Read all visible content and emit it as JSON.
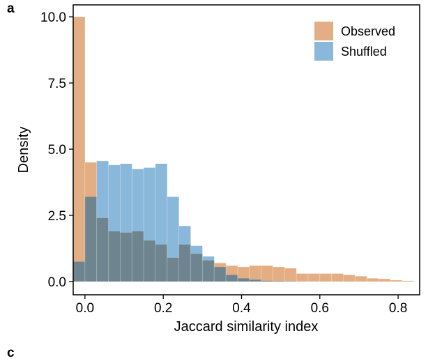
{
  "panel_label": "a",
  "next_panel_label": "c",
  "chart_data": {
    "type": "bar",
    "histogram": true,
    "bin_width": 0.03,
    "xlabel": "Jaccard similarity index",
    "ylabel": "Density",
    "xlim": [
      -0.03,
      0.855
    ],
    "ylim": [
      -0.5,
      10.45
    ],
    "xticks": [
      0.0,
      0.2,
      0.4,
      0.6,
      0.8
    ],
    "xtick_labels": [
      "0.0",
      "0.2",
      "0.4",
      "0.6",
      "0.8"
    ],
    "yticks": [
      0.0,
      2.5,
      5.0,
      7.5,
      10.0
    ],
    "ytick_labels": [
      "0.0",
      "2.5",
      "5.0",
      "7.5",
      "10.0"
    ],
    "grid": false,
    "legend_position": "top-right",
    "series": [
      {
        "name": "Observed",
        "color": "#e3ae84",
        "bins": [
          [
            -0.015,
            10.0
          ],
          [
            0.015,
            4.5
          ],
          [
            0.045,
            2.4
          ],
          [
            0.075,
            1.9
          ],
          [
            0.105,
            1.85
          ],
          [
            0.135,
            1.9
          ],
          [
            0.165,
            1.55
          ],
          [
            0.195,
            1.4
          ],
          [
            0.225,
            0.9
          ],
          [
            0.255,
            1.4
          ],
          [
            0.285,
            1.05
          ],
          [
            0.315,
            0.8
          ],
          [
            0.345,
            0.7
          ],
          [
            0.375,
            0.6
          ],
          [
            0.405,
            0.55
          ],
          [
            0.435,
            0.6
          ],
          [
            0.465,
            0.6
          ],
          [
            0.495,
            0.55
          ],
          [
            0.525,
            0.5
          ],
          [
            0.555,
            0.3
          ],
          [
            0.585,
            0.3
          ],
          [
            0.615,
            0.3
          ],
          [
            0.645,
            0.3
          ],
          [
            0.675,
            0.25
          ],
          [
            0.705,
            0.2
          ],
          [
            0.735,
            0.12
          ],
          [
            0.765,
            0.1
          ],
          [
            0.795,
            0.05
          ],
          [
            0.825,
            0.03
          ]
        ]
      },
      {
        "name": "Shuffled",
        "color": "#8ab8db",
        "bins": [
          [
            -0.015,
            0.75
          ],
          [
            0.015,
            3.2
          ],
          [
            0.045,
            4.55
          ],
          [
            0.075,
            4.4
          ],
          [
            0.105,
            4.45
          ],
          [
            0.135,
            4.25
          ],
          [
            0.165,
            4.3
          ],
          [
            0.195,
            4.45
          ],
          [
            0.225,
            3.2
          ],
          [
            0.255,
            2.1
          ],
          [
            0.285,
            1.35
          ],
          [
            0.315,
            0.95
          ],
          [
            0.345,
            0.55
          ],
          [
            0.375,
            0.25
          ],
          [
            0.405,
            0.12
          ],
          [
            0.435,
            0.07
          ],
          [
            0.465,
            0.03
          ],
          [
            0.495,
            0.02
          ],
          [
            0.525,
            0.01
          ],
          [
            0.555,
            0.0
          ],
          [
            0.585,
            0.0
          ],
          [
            0.615,
            0.0
          ],
          [
            0.645,
            0.0
          ],
          [
            0.675,
            0.0
          ],
          [
            0.705,
            0.0
          ],
          [
            0.735,
            0.0
          ],
          [
            0.765,
            0.0
          ],
          [
            0.795,
            0.0
          ],
          [
            0.825,
            0.0
          ]
        ]
      }
    ]
  }
}
